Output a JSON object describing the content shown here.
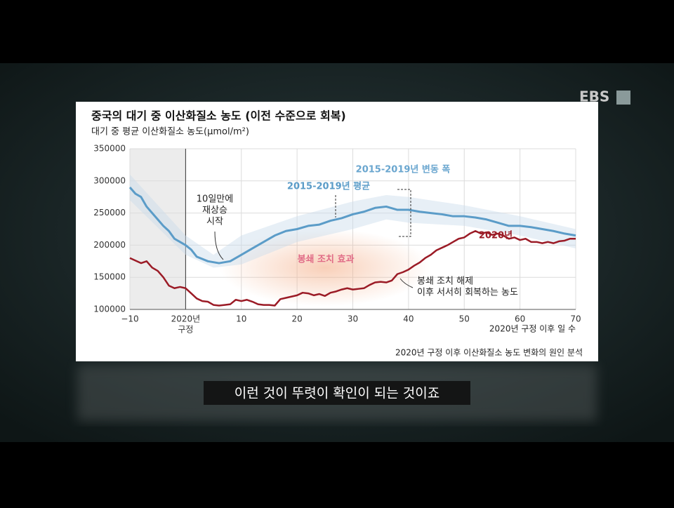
{
  "broadcast": {
    "logo": "EBS",
    "caption": "이런 것이 뚜렷이 확인이 되는 것이죠"
  },
  "chart_data": {
    "type": "line",
    "title": "중국의 대기 중 이산화질소 농도 (이전 수준으로 회복)",
    "ylabel": "대기 중 평균 이산화질소 농도(μmol/m²)",
    "xlabel": "2020년 구정 이후 일 수",
    "source": "2020년 구정 이후 이산화질소 농도 변화의 원인 분석",
    "xlim": [
      -10,
      70
    ],
    "xticks": [
      {
        "value": -10,
        "label": "−10"
      },
      {
        "value": 0,
        "label": [
          "2020년",
          "구정"
        ]
      },
      10,
      20,
      30,
      40,
      50,
      60,
      70
    ],
    "ylim": [
      100000,
      350000
    ],
    "yticks": [
      100000,
      150000,
      200000,
      250000,
      300000,
      350000
    ],
    "grid": true,
    "band": {
      "name": "2015-2019년 변동 폭",
      "color": "#c9dcea",
      "x": [
        -10,
        0,
        5,
        10,
        20,
        30,
        36,
        40,
        50,
        60,
        70
      ],
      "upper": [
        310000,
        215000,
        185000,
        215000,
        245000,
        268000,
        278000,
        275000,
        262000,
        245000,
        225000
      ],
      "lower": [
        270000,
        185000,
        165000,
        170000,
        205000,
        225000,
        240000,
        235000,
        230000,
        215000,
        195000
      ]
    },
    "series": [
      {
        "name": "2015-2019년 평균",
        "color": "#5b9cc8",
        "x": [
          -10,
          -9,
          -8,
          -7,
          -6,
          -5,
          -4,
          -3,
          -2,
          -1,
          0,
          1,
          2,
          4,
          6,
          8,
          10,
          12,
          14,
          16,
          18,
          20,
          22,
          24,
          26,
          28,
          30,
          32,
          34,
          36,
          38,
          40,
          42,
          44,
          46,
          48,
          50,
          52,
          54,
          56,
          58,
          60,
          62,
          64,
          66,
          68,
          70
        ],
        "values": [
          290000,
          280000,
          275000,
          260000,
          250000,
          240000,
          230000,
          222000,
          210000,
          205000,
          200000,
          193000,
          182000,
          175000,
          172000,
          175000,
          185000,
          195000,
          205000,
          215000,
          222000,
          225000,
          230000,
          232000,
          238000,
          242000,
          248000,
          252000,
          258000,
          260000,
          255000,
          255000,
          252000,
          250000,
          248000,
          245000,
          245000,
          243000,
          240000,
          235000,
          230000,
          230000,
          228000,
          225000,
          222000,
          218000,
          215000
        ]
      },
      {
        "name": "2020년",
        "color": "#9b1b26",
        "x": [
          -10,
          -8,
          -7,
          -6,
          -5,
          -4,
          -3,
          -2,
          -1,
          0,
          1,
          2,
          3,
          4,
          5,
          6,
          7,
          8,
          9,
          10,
          11,
          12,
          13,
          14,
          15,
          16,
          17,
          18,
          20,
          21,
          22,
          23,
          24,
          25,
          26,
          27,
          28,
          29,
          30,
          31,
          32,
          33,
          34,
          35,
          36,
          37,
          38,
          39,
          40,
          41,
          42,
          43,
          44,
          45,
          46,
          47,
          48,
          49,
          50,
          51,
          52,
          53,
          54,
          55,
          56,
          57,
          58,
          59,
          60,
          61,
          62,
          63,
          64,
          65,
          66,
          67,
          68,
          69,
          70
        ],
        "values": [
          180000,
          172000,
          175000,
          165000,
          160000,
          150000,
          137000,
          133000,
          135000,
          133000,
          125000,
          117000,
          113000,
          112000,
          107000,
          106000,
          107000,
          108000,
          115000,
          113000,
          115000,
          112000,
          108000,
          107000,
          107000,
          106000,
          116000,
          118000,
          122000,
          126000,
          125000,
          122000,
          124000,
          121000,
          126000,
          128000,
          131000,
          133000,
          131000,
          132000,
          133000,
          138000,
          142000,
          143000,
          142000,
          145000,
          155000,
          158000,
          162000,
          168000,
          173000,
          180000,
          185000,
          192000,
          196000,
          200000,
          205000,
          210000,
          212000,
          218000,
          222000,
          218000,
          220000,
          216000,
          218000,
          215000,
          210000,
          212000,
          208000,
          210000,
          205000,
          205000,
          203000,
          205000,
          203000,
          206000,
          207000,
          210000,
          210000
        ]
      }
    ],
    "annotations": [
      {
        "lines": [
          "10일만에",
          "재상승",
          "시작"
        ],
        "color": "#222"
      },
      {
        "lines": [
          "봉쇄 조치 효과"
        ],
        "color": "#e06a86"
      },
      {
        "lines": [
          "봉쇄 조치 해제",
          "이후 서서히 회복하는 농도"
        ],
        "color": "#222"
      }
    ]
  }
}
